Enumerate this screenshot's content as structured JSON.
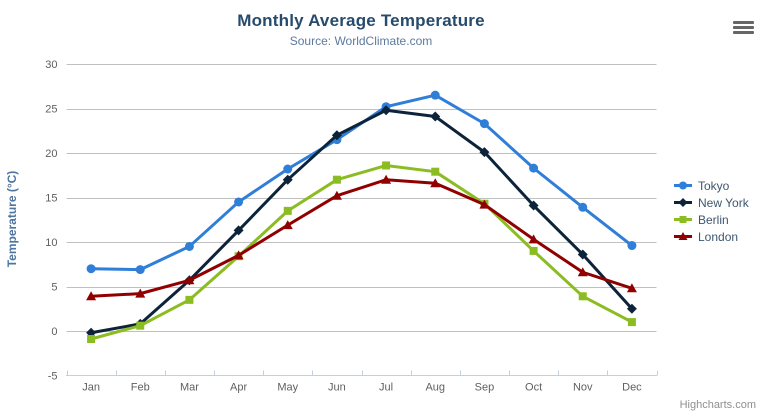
{
  "header": {
    "title": "Monthly Average Temperature",
    "subtitle": "Source: WorldClimate.com"
  },
  "chart_data": {
    "type": "line",
    "title": "Monthly Average Temperature",
    "subtitle": "Source: WorldClimate.com",
    "categories": [
      "Jan",
      "Feb",
      "Mar",
      "Apr",
      "May",
      "Jun",
      "Jul",
      "Aug",
      "Sep",
      "Oct",
      "Nov",
      "Dec"
    ],
    "series": [
      {
        "name": "Tokyo",
        "color": "#2f7ed8",
        "marker": "circle",
        "values": [
          7.0,
          6.9,
          9.5,
          14.5,
          18.2,
          21.5,
          25.2,
          26.5,
          23.3,
          18.3,
          13.9,
          9.6
        ]
      },
      {
        "name": "New York",
        "color": "#0d233a",
        "marker": "diamond",
        "values": [
          -0.2,
          0.8,
          5.7,
          11.3,
          17.0,
          22.0,
          24.8,
          24.1,
          20.1,
          14.1,
          8.6,
          2.5
        ]
      },
      {
        "name": "Berlin",
        "color": "#8bbc21",
        "marker": "square",
        "values": [
          -0.9,
          0.6,
          3.5,
          8.4,
          13.5,
          17.0,
          18.6,
          17.9,
          14.3,
          9.0,
          3.9,
          1.0
        ]
      },
      {
        "name": "London",
        "color": "#910000",
        "marker": "triangle",
        "values": [
          3.9,
          4.2,
          5.7,
          8.5,
          11.9,
          15.2,
          17.0,
          16.6,
          14.2,
          10.3,
          6.6,
          4.8
        ]
      }
    ],
    "xlabel": "",
    "ylabel": "Temperature (°C)",
    "ylim": [
      -5,
      30
    ],
    "ytick_interval": 5,
    "yticks": [
      -5,
      0,
      5,
      10,
      15,
      20,
      25,
      30
    ],
    "grid": true,
    "legend_position": "right"
  },
  "colors": {
    "gridline": "#C0C0C0",
    "axis_line": "#C0D0E0",
    "tick_label": "#606060",
    "title": "#274b6d",
    "subtitle": "#5d7a9e",
    "legend_text": "#3E576F",
    "axis_title": "#4d759e",
    "credits": "#909090",
    "hamburger": "#666666"
  },
  "export_menu": {
    "icon": "hamburger",
    "tooltip": ""
  },
  "credits": {
    "label": "Highcharts.com"
  }
}
